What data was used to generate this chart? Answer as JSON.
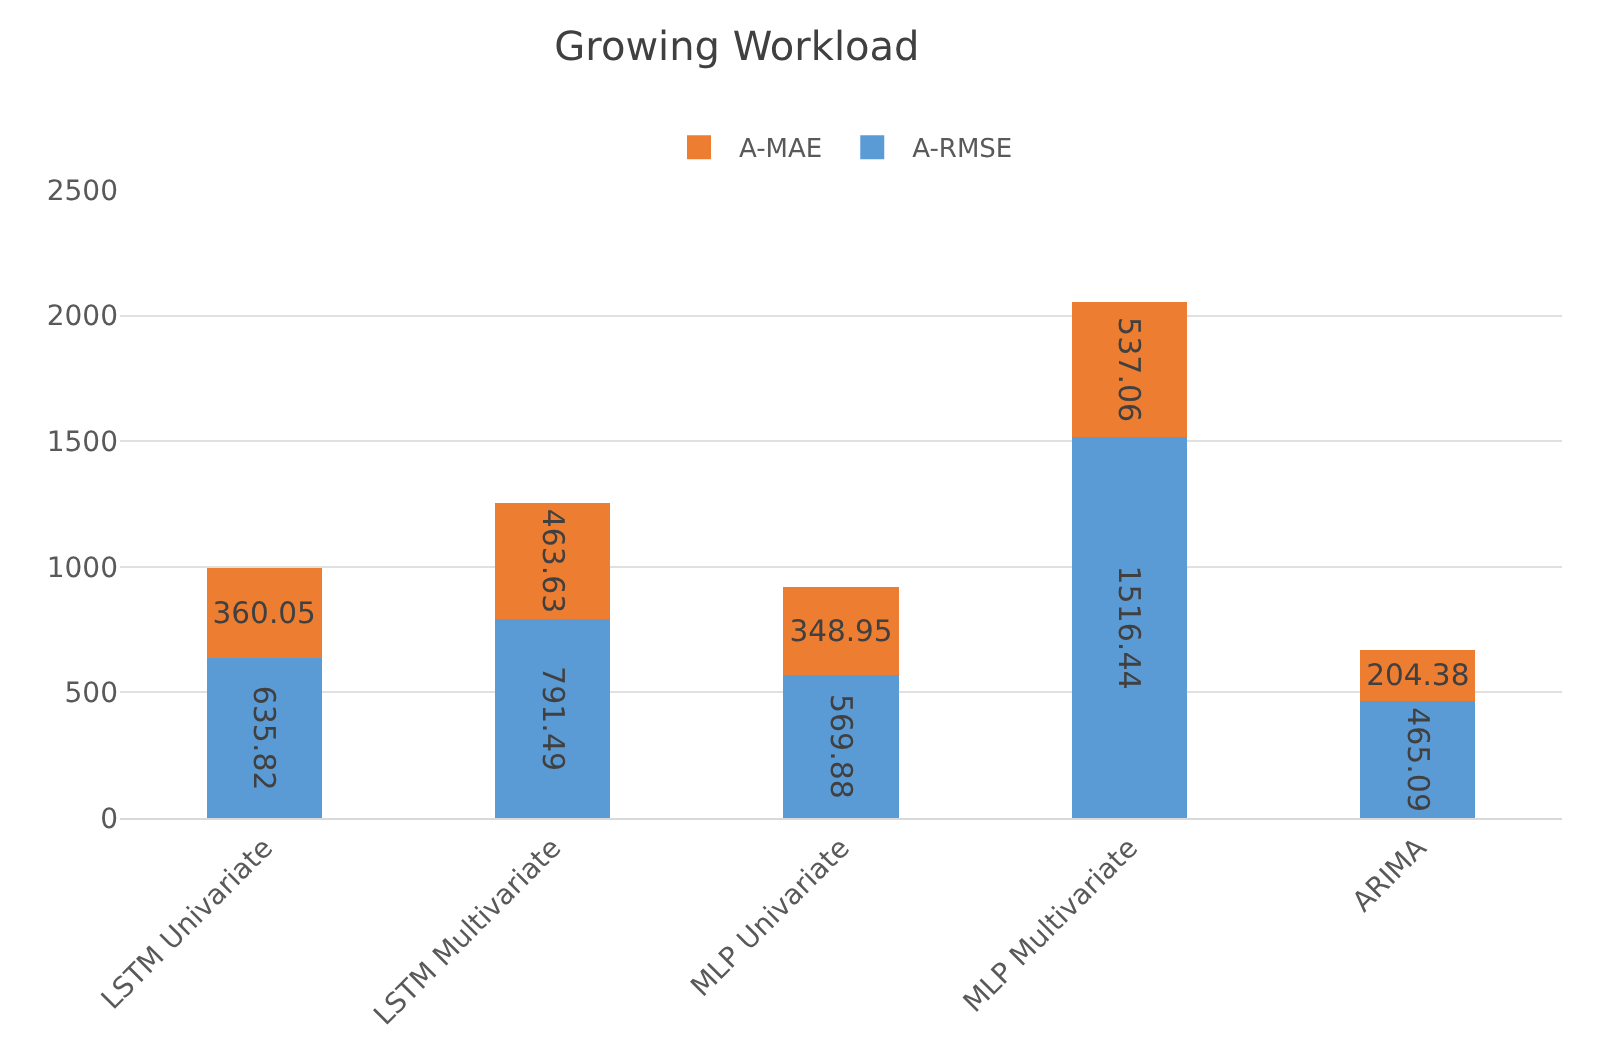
{
  "chart_data": {
    "type": "bar",
    "title": "Growing Workload",
    "stacked": true,
    "data_labels": true,
    "categories": [
      "LSTM Univariate",
      "LSTM Multivariate",
      "MLP Univariate",
      "MLP Multivariate",
      "ARIMA"
    ],
    "series": [
      {
        "name": "A-RMSE",
        "color": "#5b9bd5",
        "values": [
          635.82,
          791.49,
          569.88,
          1516.44,
          465.09
        ]
      },
      {
        "name": "A-MAE",
        "color": "#ed7d31",
        "values": [
          360.05,
          463.63,
          348.95,
          537.06,
          204.38
        ]
      }
    ],
    "ylim": [
      0,
      2500
    ],
    "yticks": [
      0,
      500,
      1000,
      1500,
      2000,
      2500
    ],
    "grid": "y",
    "legend": "top"
  }
}
